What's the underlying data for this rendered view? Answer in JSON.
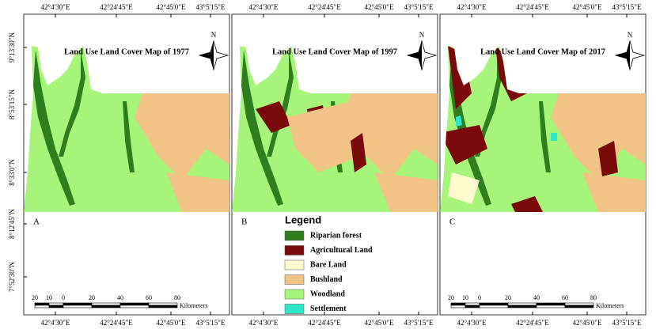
{
  "panels": [
    {
      "title": "Land Use Land Cover Map of 1977",
      "letter": "A",
      "north": "N",
      "top_labels": [
        "42°4'30\"E",
        "42°24'45\"E",
        "42°45'0\"E",
        "43°5'15\"E"
      ],
      "bottom_labels": [
        "42°4'30\"E",
        "42°24'45\"E",
        "42°45'0\"E",
        "43°5'15\"E"
      ]
    },
    {
      "title": "Land Use Land Cover Map of 1997",
      "letter": "B",
      "north": "N",
      "top_labels": [
        "42°4'30\"E",
        "42°24'45\"E",
        "42°45'0\"E",
        "43°5'15\"E"
      ],
      "bottom_labels": [
        "42°4'30\"E",
        "42°24'45\"E",
        "42°45'0\"E",
        "43°5'15\"E"
      ]
    },
    {
      "title": "Land Use Land Cover Map of 2017",
      "letter": "C",
      "north": "N",
      "top_labels": [
        "42°4'30\"E",
        "42°24'45\"E",
        "42°45'0\"E",
        "43°5'15\"E"
      ],
      "bottom_labels": [
        "42°4'30\"E",
        "42°24'45\"E",
        "42°45'0\"E",
        "43°5'15\"E"
      ]
    }
  ],
  "lat_labels": [
    "9°13'30\"N",
    "8°53'15\"N",
    "8°33'0\"N",
    "8°12'45\"N",
    "7°52'30\"N"
  ],
  "legend": {
    "title": "Legend",
    "items": [
      "Riparian forest",
      "Agricultural Land",
      "Bare Land",
      "Bushland",
      "Woodland",
      "Settlement"
    ]
  },
  "scale_bars": [
    {
      "ticks": [
        "20",
        "10",
        "0",
        "20",
        "40",
        "60",
        "80"
      ],
      "unit": "Kilometers"
    },
    {
      "ticks": [
        "20",
        "10",
        "0",
        "20",
        "40",
        "60",
        "80"
      ],
      "unit": "Kilometers"
    }
  ]
}
